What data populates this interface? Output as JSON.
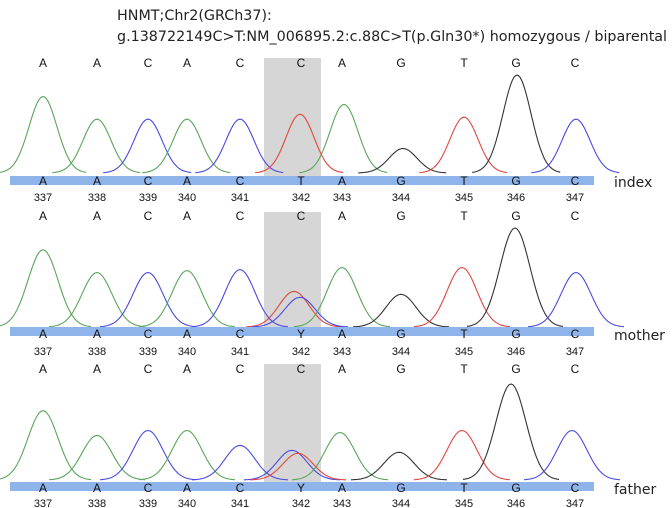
{
  "title": {
    "line1": "HNMT;Chr2(GRCh37):",
    "line2": "g.138722149C>T:NM_006895.2:c.88C>T(p.Gln30*) homozygous / biparental"
  },
  "colors": {
    "A": "#5aa55a",
    "C": "#4a4ae0",
    "G": "#333333",
    "T": "#e0473f",
    "basebar": "#8fb4ea",
    "highlight": "#d6d6d6"
  },
  "chromatograms": [
    {
      "sample": "index",
      "reference": [
        "A",
        "A",
        "C",
        "A",
        "C",
        "C",
        "A",
        "G",
        "T",
        "G",
        "C"
      ],
      "calls": [
        "A",
        "A",
        "C",
        "A",
        "C",
        "T",
        "A",
        "G",
        "T",
        "G",
        "C"
      ],
      "positions": [
        "337",
        "338",
        "339",
        "340",
        "341",
        "342",
        "343",
        "344",
        "345",
        "346",
        "347"
      ],
      "peaks": [
        {
          "base": "A",
          "height": 0.78
        },
        {
          "base": "A",
          "height": 0.55
        },
        {
          "base": "C",
          "height": 0.55
        },
        {
          "base": "A",
          "height": 0.55
        },
        {
          "base": "C",
          "height": 0.55
        },
        {
          "base": "T",
          "height": 0.6
        },
        {
          "base": "A",
          "height": 0.7
        },
        {
          "base": "G",
          "height": 0.25
        },
        {
          "base": "T",
          "height": 0.57
        },
        {
          "base": "G",
          "height": 1.0
        },
        {
          "base": "C",
          "height": 0.55
        }
      ]
    },
    {
      "sample": "mother",
      "reference": [
        "A",
        "A",
        "C",
        "A",
        "C",
        "C",
        "A",
        "G",
        "T",
        "G",
        "C"
      ],
      "calls": [
        "A",
        "A",
        "C",
        "A",
        "C",
        "Y",
        "A",
        "G",
        "T",
        "G",
        "C"
      ],
      "positions": [
        "337",
        "338",
        "339",
        "340",
        "341",
        "342",
        "343",
        "344",
        "345",
        "346",
        "347"
      ],
      "peaks": [
        {
          "base": "A",
          "height": 0.78
        },
        {
          "base": "A",
          "height": 0.55
        },
        {
          "base": "C",
          "height": 0.55
        },
        {
          "base": "A",
          "height": 0.57
        },
        {
          "base": "C",
          "height": 0.58
        },
        {
          "base": "T",
          "height": 0.36
        },
        {
          "base": "C",
          "height": 0.3
        },
        {
          "base": "A",
          "height": 0.6
        },
        {
          "base": "G",
          "height": 0.33
        },
        {
          "base": "T",
          "height": 0.6
        },
        {
          "base": "G",
          "height": 1.0
        },
        {
          "base": "C",
          "height": 0.55
        }
      ]
    },
    {
      "sample": "father",
      "reference": [
        "A",
        "A",
        "C",
        "A",
        "C",
        "C",
        "A",
        "G",
        "T",
        "G",
        "C"
      ],
      "calls": [
        "A",
        "A",
        "C",
        "A",
        "C",
        "Y",
        "A",
        "G",
        "T",
        "G",
        "C"
      ],
      "positions": [
        "337",
        "338",
        "339",
        "340",
        "341",
        "342",
        "343",
        "344",
        "345",
        "346",
        "347"
      ],
      "peaks": [
        {
          "base": "A",
          "height": 0.7
        },
        {
          "base": "A",
          "height": 0.45
        },
        {
          "base": "C",
          "height": 0.5
        },
        {
          "base": "A",
          "height": 0.5
        },
        {
          "base": "C",
          "height": 0.35
        },
        {
          "base": "C",
          "height": 0.3
        },
        {
          "base": "T",
          "height": 0.27
        },
        {
          "base": "A",
          "height": 0.48
        },
        {
          "base": "G",
          "height": 0.28
        },
        {
          "base": "T",
          "height": 0.5
        },
        {
          "base": "G",
          "height": 0.97
        },
        {
          "base": "C",
          "height": 0.5
        }
      ]
    }
  ]
}
